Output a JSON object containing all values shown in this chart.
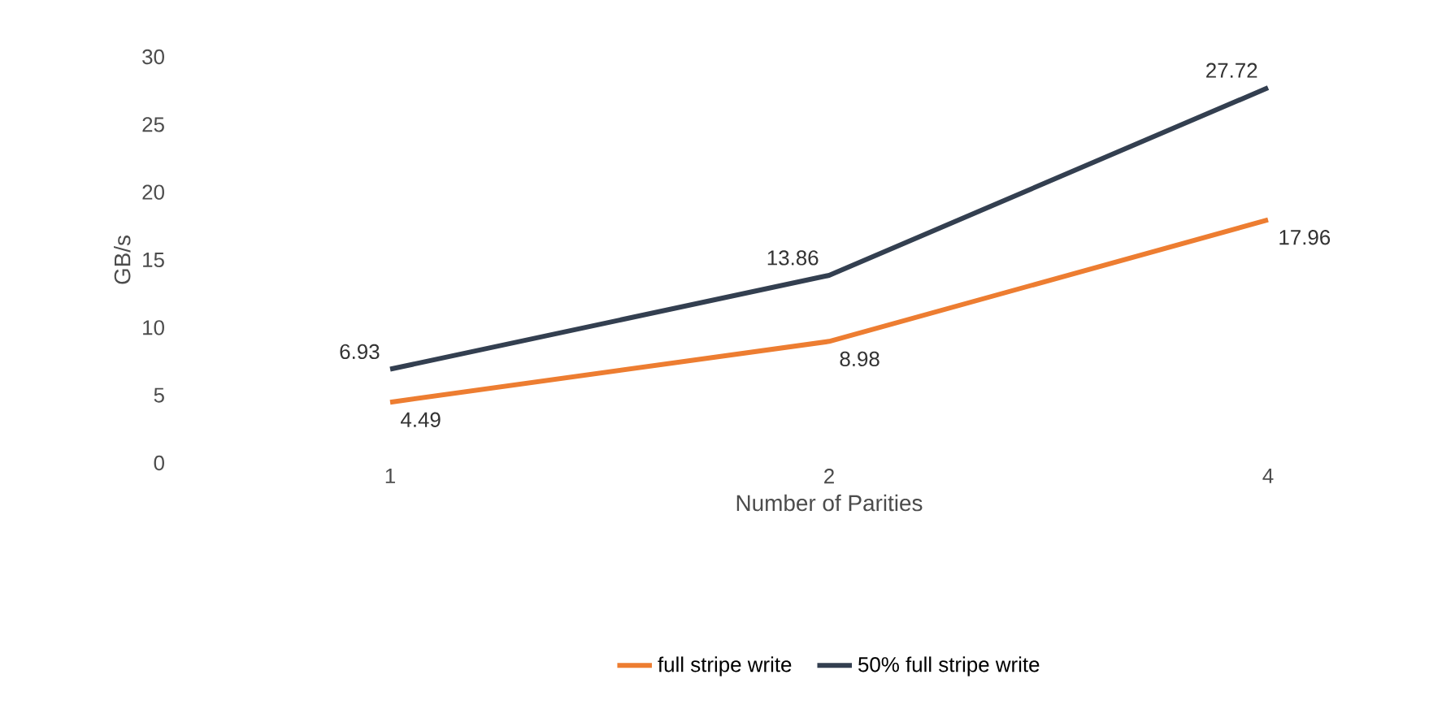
{
  "chart_data": {
    "type": "line",
    "xlabel": "Number of Parities",
    "ylabel": "GB/s",
    "categories": [
      "1",
      "2",
      "4"
    ],
    "series": [
      {
        "name": "full stripe write",
        "color": "#ed7d31",
        "values": [
          4.49,
          8.98,
          17.96
        ]
      },
      {
        "name": "50% full stripe write",
        "color": "#333f50",
        "values": [
          6.93,
          13.86,
          27.72
        ]
      }
    ],
    "ylim": [
      0,
      30
    ],
    "yticks": [
      0,
      5,
      10,
      15,
      20,
      25,
      30
    ],
    "data_labels": true,
    "legend": "bottom",
    "marker": "none",
    "line_style": "solid",
    "grid": false
  }
}
